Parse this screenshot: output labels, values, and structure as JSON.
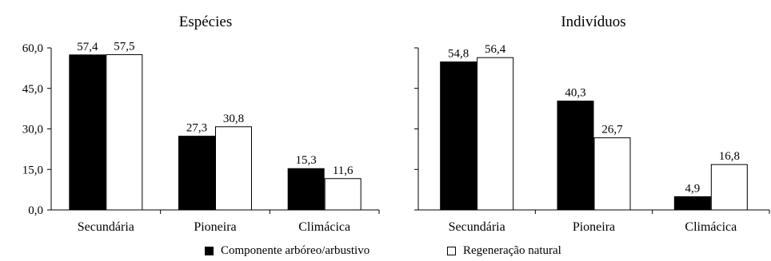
{
  "chart_data": [
    {
      "type": "bar",
      "title": "Espécies",
      "categories": [
        "Secundária",
        "Pioneira",
        "Climácica"
      ],
      "series": [
        {
          "name": "Componente arbóreo/arbustivo",
          "values": [
            57.4,
            27.3,
            15.3
          ],
          "color": "#000000"
        },
        {
          "name": "Regeneração natural",
          "values": [
            57.5,
            30.8,
            11.6
          ],
          "color": "#ffffff"
        }
      ],
      "value_labels": [
        [
          "57,4",
          "27,3",
          "15,3"
        ],
        [
          "57,5",
          "30,8",
          "11,6"
        ]
      ],
      "yticks": [
        0,
        15,
        30,
        45,
        60
      ],
      "ytick_labels": [
        "0,0",
        "15,0",
        "30,0",
        "45,0",
        "60,0"
      ],
      "ylim": [
        0,
        60
      ],
      "xlabel": "",
      "ylabel": "",
      "grid": false
    },
    {
      "type": "bar",
      "title": "Indivíduos",
      "categories": [
        "Secundária",
        "Pioneira",
        "Climácica"
      ],
      "series": [
        {
          "name": "Componente arbóreo/arbustivo",
          "values": [
            54.8,
            40.3,
            4.9
          ],
          "color": "#000000"
        },
        {
          "name": "Regeneração natural",
          "values": [
            56.4,
            26.7,
            16.8
          ],
          "color": "#ffffff"
        }
      ],
      "value_labels": [
        [
          "54,8",
          "40,3",
          "4,9"
        ],
        [
          "56,4",
          "26,7",
          "16,8"
        ]
      ],
      "ylim": [
        0,
        60
      ],
      "xlabel": "",
      "ylabel": "",
      "grid": false
    }
  ],
  "legend": {
    "position": "bottom-center",
    "items": [
      {
        "label": "Componente arbóreo/arbustivo",
        "color": "#000000"
      },
      {
        "label": "Regeneração natural",
        "color": "#ffffff"
      }
    ]
  }
}
